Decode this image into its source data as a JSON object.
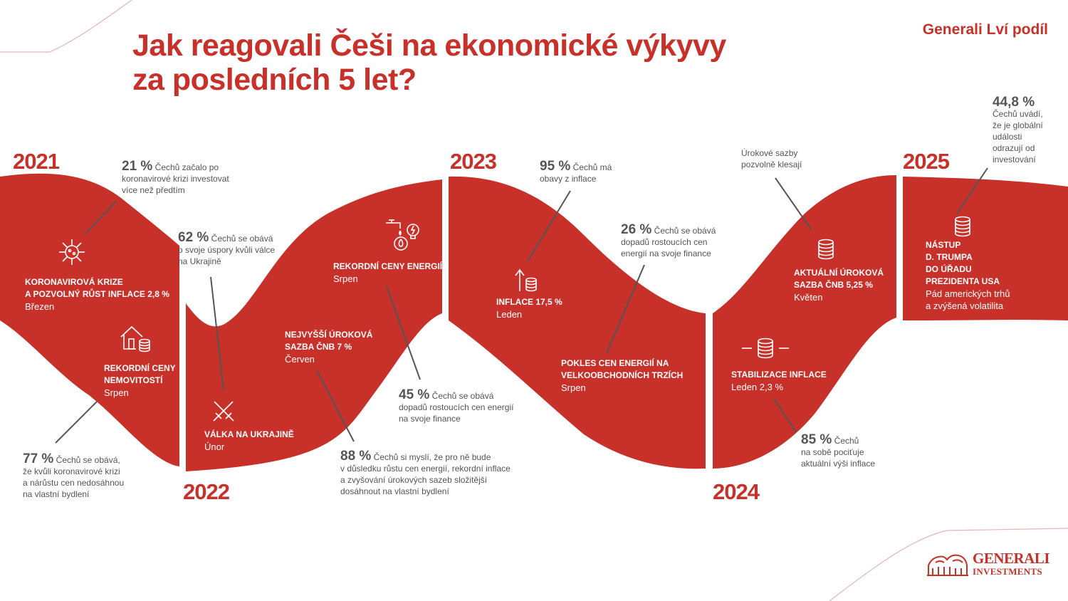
{
  "header": {
    "title_line1": "Jak reagovali Češi na ekonomické výkyvy",
    "title_line2": "za posledních 5 let?",
    "brand": "Generali Lví podíl"
  },
  "years": [
    "2021",
    "2022",
    "2023",
    "2024",
    "2025"
  ],
  "events": [
    {
      "title": "KORONAVIROVÁ KRIZE A POZVOLNÝ RŮST INFLACE 2,8 %",
      "l1": "KORONAVIROVÁ KRIZE",
      "l2": "A POZVOLNÝ RŮST INFLACE 2,8 %",
      "sub": "Březen",
      "icon": "virus-icon"
    },
    {
      "l1": "REKORDNÍ CENY",
      "l2": "NEMOVITOSTÍ",
      "sub": "Srpen",
      "icon": "house-coins-icon"
    },
    {
      "l1": "VÁLKA NA UKRAJINĚ",
      "sub": "Únor",
      "icon": "crossed-swords-icon"
    },
    {
      "l1": "NEJVYŠŠÍ ÚROKOVÁ",
      "l2": "SAZBA ČNB 7 %",
      "sub": "Červen"
    },
    {
      "l1": "REKORDNÍ CENY ENERGIÍ",
      "sub": "Srpen",
      "icon": "energy-icon"
    },
    {
      "l1": "INFLACE 17,5 %",
      "sub": "Leden",
      "icon": "rising-coins-icon"
    },
    {
      "l1": "POKLES CEN ENERGIÍ NA",
      "l2": "VELKOOBCHODNÍCH TRZÍCH",
      "sub": "Srpen"
    },
    {
      "l1": "AKTUÁLNÍ ÚROKOVÁ",
      "l2": "SAZBA ČNB 5,25 %",
      "sub": "Květen",
      "icon": "coins-icon"
    },
    {
      "l1": "STABILIZACE INFLACE",
      "sub": "Leden 2,3 %",
      "icon": "stable-coins-icon"
    },
    {
      "l1": "NÁSTUP",
      "l2": "D. TRUMPA",
      "l3": "DO ÚŘADU",
      "l4": "PREZIDENTA USA",
      "s1": "Pád amerických trhů",
      "s2": "a zvýšená volatilita"
    }
  ],
  "stats": [
    {
      "pct": "21 %",
      "t1": "Čechů začalo po",
      "t2": "koronavirové krizi investovat",
      "t3": "více než předtím"
    },
    {
      "pct": "77 %",
      "t1": "Čechů se obává,",
      "t2": "že kvůli koronavirové krizi",
      "t3": "a nárůstu cen nedosáhnou",
      "t4": "na vlastní bydlení"
    },
    {
      "pct": "62 %",
      "t1": "Čechů se obává",
      "t2": "o svoje úspory kvůli válce",
      "t3": "na Ukrajině"
    },
    {
      "pct": "88 %",
      "t1": "Čechů si myslí, že pro ně bude",
      "t2": "v důsledku růstu cen energií, rekordní inflace",
      "t3": "a zvyšování úrokových sazeb složitější",
      "t4": "dosáhnout na vlastní bydlení"
    },
    {
      "pct": "45 %",
      "t1": "Čechů se obává",
      "t2": "dopadů rostoucích cen energií",
      "t3": "na svoje finance"
    },
    {
      "pct": "95 %",
      "t1": "Čechů má",
      "t2": "obavy z inflace"
    },
    {
      "pct": "26 %",
      "t1": "Čechů se obává",
      "t2": "dopadů rostoucích cen",
      "t3": "energií na svoje finance"
    },
    {
      "t1": "Úrokové sazby",
      "t2": "pozvolně klesají"
    },
    {
      "pct": "85 %",
      "t1": "Čechů",
      "t2": "na sobě pociťuje",
      "t3": "aktuální výši inflace"
    },
    {
      "pct": "44,8 %",
      "t1": "Čechů uvádí,",
      "t2": "že je globální",
      "t3": "události",
      "t4": "odrazují od",
      "t5": "investování"
    }
  ],
  "logo": {
    "line1": "GENERALI",
    "line2": "INVESTMENTS"
  },
  "colors": {
    "brand_red": "#c8302a",
    "text_gray": "#555555"
  }
}
